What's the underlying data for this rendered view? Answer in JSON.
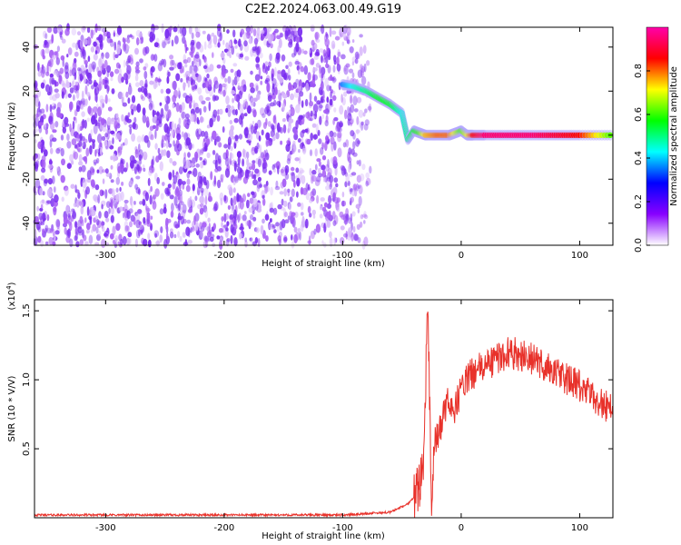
{
  "title": "C2E2.2024.063.00.49.G19",
  "chart_data": [
    {
      "type": "heatmap",
      "name": "spectrogram",
      "xlabel": "Height of straight line (km)",
      "ylabel": "Frequency (Hz)",
      "xlim": [
        -360,
        128
      ],
      "ylim": [
        -50,
        49
      ],
      "x_ticks": [
        -300,
        -200,
        -100,
        0,
        100
      ],
      "x_tick_labels": [
        "-300",
        "-200",
        "-100",
        "0",
        "100"
      ],
      "y_ticks": [
        -40,
        -20,
        0,
        20,
        40
      ],
      "y_tick_labels": [
        "-40",
        "-20",
        "0",
        "20",
        "40"
      ],
      "colorbar": {
        "label": "Normalized spectral amplitude",
        "range": [
          0,
          1
        ],
        "ticks": [
          0.0,
          0.2,
          0.4,
          0.6,
          0.8
        ],
        "tick_labels": [
          "0.0",
          "0.2",
          "0.4",
          "0.6",
          "0.8"
        ],
        "colors": [
          "#ffffff",
          "#8800ff",
          "#0000ff",
          "#00ffff",
          "#00ff00",
          "#ffff00",
          "#ff0000",
          "#ff00aa"
        ]
      },
      "noise_region_x": [
        -360,
        -75
      ],
      "noise_amplitude_range": [
        0.0,
        0.12
      ],
      "signal_track": {
        "x": [
          -100,
          -90,
          -80,
          -70,
          -60,
          -50,
          -45,
          -40,
          -35,
          -30,
          -20,
          -10,
          -5,
          0,
          5,
          10,
          20,
          40,
          60,
          80,
          100,
          128
        ],
        "frequency": [
          23,
          22,
          20,
          17,
          14,
          10,
          -2,
          2,
          1,
          0,
          0,
          0,
          1,
          2,
          0,
          0,
          0,
          0,
          0,
          0,
          0,
          0
        ],
        "amplitude": [
          0.35,
          0.45,
          0.5,
          0.55,
          0.55,
          0.45,
          0.5,
          0.55,
          0.6,
          0.75,
          0.8,
          0.8,
          0.7,
          0.6,
          0.7,
          0.85,
          0.95,
          0.95,
          0.95,
          0.9,
          0.85,
          0.6
        ]
      }
    },
    {
      "type": "line",
      "name": "snr",
      "xlabel": "Height of straight line (km)",
      "ylabel": "SNR (10 * V/V)",
      "y_scale_label": "(x10",
      "y_scale_exponent": "4",
      "y_scale_close": ")",
      "xlim": [
        -360,
        128
      ],
      "ylim": [
        0,
        1.58
      ],
      "x_ticks": [
        -300,
        -200,
        -100,
        0,
        100
      ],
      "x_tick_labels": [
        "-300",
        "-200",
        "-100",
        "0",
        "100"
      ],
      "y_ticks": [
        0.5,
        1.0,
        1.5
      ],
      "y_tick_labels": [
        "0.5",
        "1.0",
        "1.5"
      ],
      "series": [
        {
          "color": "#e8312a",
          "x": [
            -360,
            -300,
            -200,
            -100,
            -60,
            -45,
            -40,
            -35,
            -32,
            -30,
            -29,
            -28,
            -27,
            -26,
            -25,
            -24,
            -22,
            -20,
            -15,
            -10,
            -5,
            0,
            10,
            20,
            30,
            40,
            50,
            60,
            70,
            80,
            90,
            100,
            110,
            120,
            128
          ],
          "y": [
            0.02,
            0.02,
            0.02,
            0.02,
            0.04,
            0.1,
            0.15,
            0.25,
            0.45,
            0.9,
            1.32,
            1.55,
            1.05,
            0.45,
            0.12,
            0.3,
            0.5,
            0.55,
            0.75,
            0.85,
            0.78,
            0.95,
            1.05,
            1.1,
            1.15,
            1.2,
            1.18,
            1.15,
            1.1,
            1.05,
            1.0,
            0.95,
            0.88,
            0.82,
            0.8
          ]
        }
      ]
    }
  ]
}
